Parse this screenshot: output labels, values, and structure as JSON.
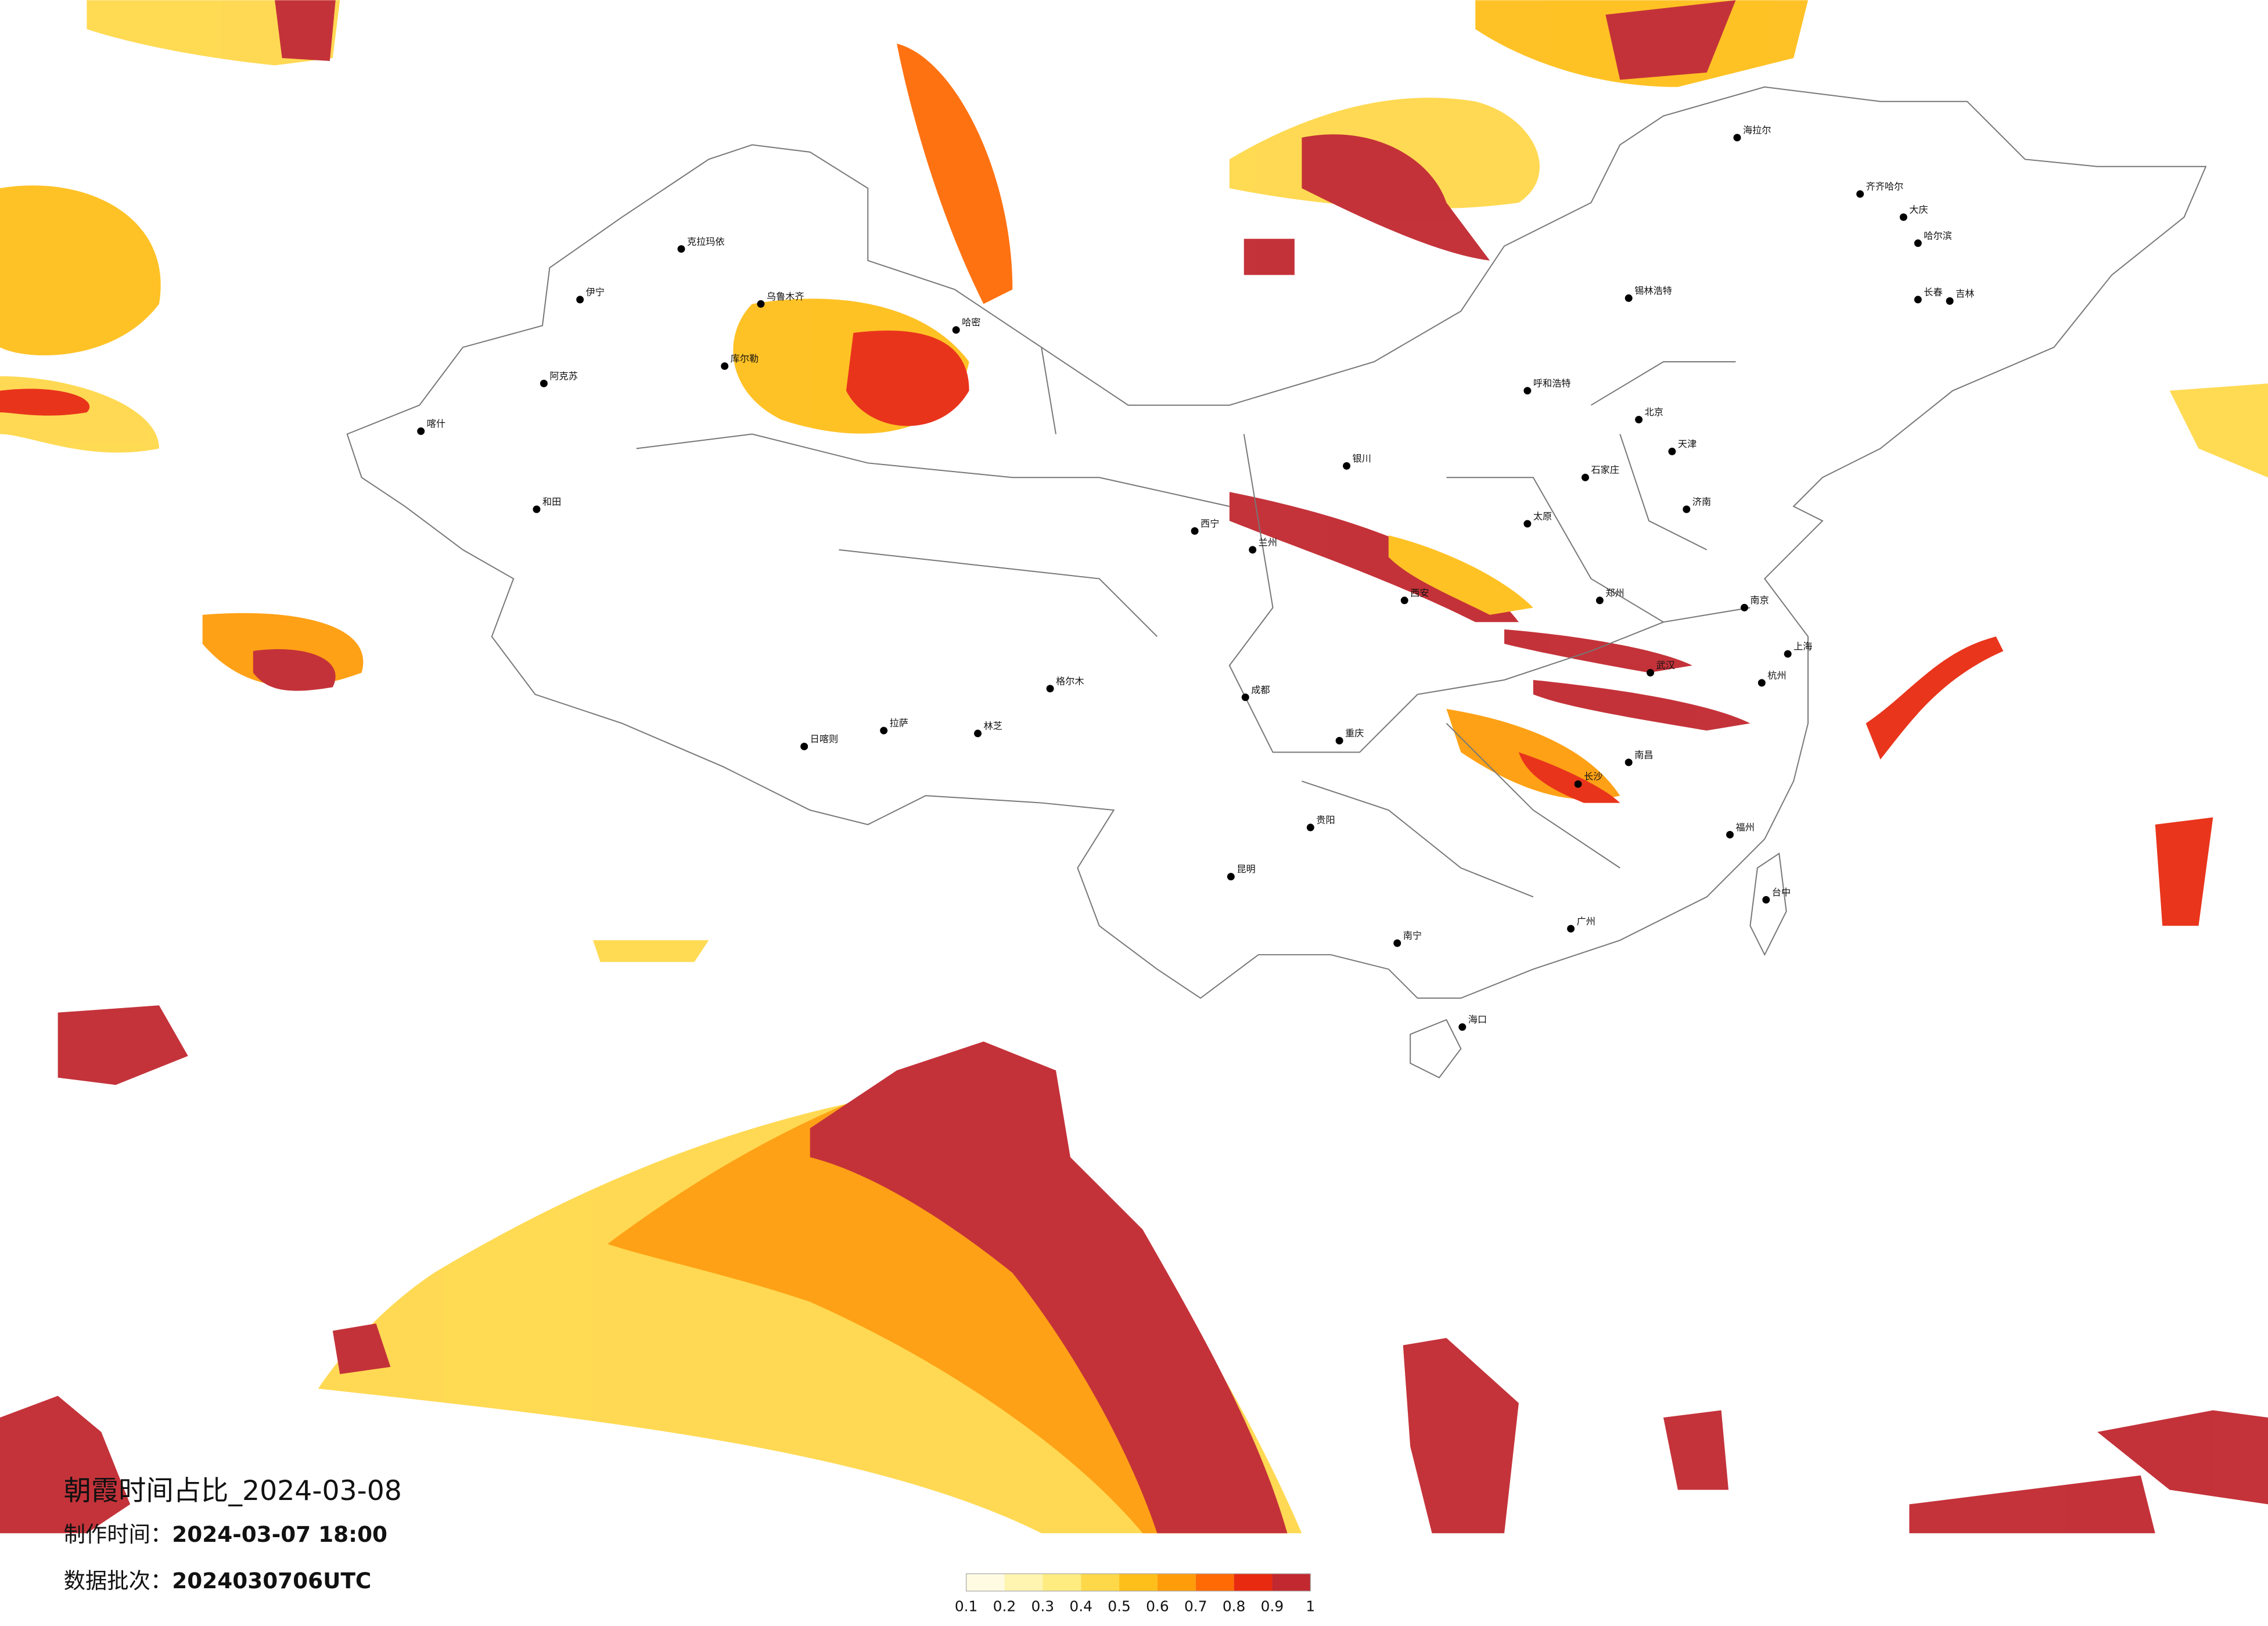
{
  "header": {
    "title": "朝霞时间占比_2024-03-08",
    "made_label": "制作时间：",
    "made_time": "2024-03-07 18:00",
    "batch_label": "数据批次：",
    "batch": "2024030706UTC"
  },
  "legend": {
    "ticks": [
      "0.1",
      "0.2",
      "0.3",
      "0.4",
      "0.5",
      "0.6",
      "0.7",
      "0.8",
      "0.9",
      "1"
    ],
    "colors": [
      "#fffbe3",
      "#fff4b0",
      "#ffec80",
      "#ffd84a",
      "#ffbf1a",
      "#ff9c0a",
      "#ff6a05",
      "#e82a10",
      "#c1282f"
    ]
  },
  "cities": [
    "克拉玛依",
    "乌鲁木齐",
    "伊宁",
    "阿克苏",
    "库尔勒",
    "喀什",
    "哈密",
    "和田",
    "格尔木",
    "拉萨",
    "日喀则",
    "林芝",
    "海拉尔",
    "齐齐哈尔",
    "大庆",
    "哈尔滨",
    "长春",
    "吉林",
    "锡林浩特",
    "呼和浩特",
    "北京",
    "天津",
    "石家庄",
    "太原",
    "济南",
    "郑州",
    "西安",
    "兰州",
    "西宁",
    "银川",
    "成都",
    "重庆",
    "武汉",
    "南京",
    "上海",
    "杭州",
    "南昌",
    "长沙",
    "贵阳",
    "昆明",
    "南宁",
    "广州",
    "福州",
    "台中",
    "海口"
  ]
}
